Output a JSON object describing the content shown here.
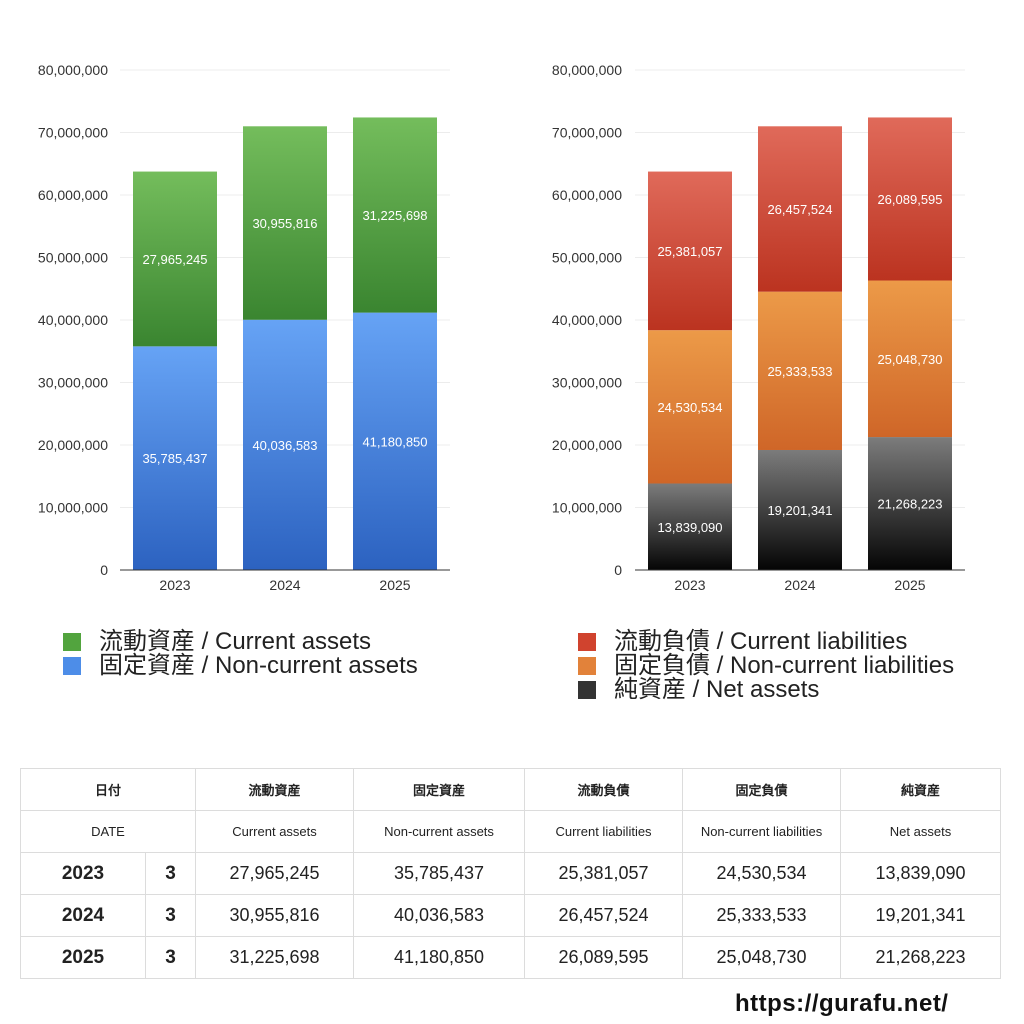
{
  "chart_data": [
    {
      "type": "bar",
      "stacked": true,
      "categories": [
        "2023",
        "2024",
        "2025"
      ],
      "ylim": [
        0,
        80000000
      ],
      "yticks": [
        "0",
        "10,000,000",
        "20,000,000",
        "30,000,000",
        "40,000,000",
        "50,000,000",
        "60,000,000",
        "70,000,000",
        "80,000,000"
      ],
      "grid": true,
      "legend_position": "bottom",
      "series": [
        {
          "name": "固定資産 / Non-current assets",
          "values": [
            35785437,
            40036583,
            41180850
          ],
          "labels": [
            "35,785,437",
            "40,036,583",
            "41,180,850"
          ],
          "color": "#4d8de8",
          "color_top": "#66a3f5",
          "color_bottom": "#2c62c0"
        },
        {
          "name": "流動資産 / Current assets",
          "values": [
            27965245,
            30955816,
            31225698
          ],
          "labels": [
            "27,965,245",
            "30,955,816",
            "31,225,698"
          ],
          "color": "#52a43e",
          "color_top": "#74bd5c",
          "color_bottom": "#3a8530"
        }
      ]
    },
    {
      "type": "bar",
      "stacked": true,
      "categories": [
        "2023",
        "2024",
        "2025"
      ],
      "ylim": [
        0,
        80000000
      ],
      "yticks": [
        "0",
        "10,000,000",
        "20,000,000",
        "30,000,000",
        "40,000,000",
        "50,000,000",
        "60,000,000",
        "70,000,000",
        "80,000,000"
      ],
      "grid": true,
      "legend_position": "bottom",
      "series": [
        {
          "name": "純資産 / Net assets",
          "values": [
            13839090,
            19201341,
            21268223
          ],
          "labels": [
            "13,839,090",
            "19,201,341",
            "21,268,223"
          ],
          "color": "#333333",
          "color_top": "#7c7c7c",
          "color_bottom": "#050505"
        },
        {
          "name": "固定負債 / Non-current liabilities",
          "values": [
            24530534,
            25333533,
            25048730
          ],
          "labels": [
            "24,530,534",
            "25,333,533",
            "25,048,730"
          ],
          "color": "#e2823a",
          "color_top": "#ec9a48",
          "color_bottom": "#cf6628"
        },
        {
          "name": "流動負債 / Current liabilities",
          "values": [
            25381057,
            26457524,
            26089595
          ],
          "labels": [
            "25,381,057",
            "26,457,524",
            "26,089,595"
          ],
          "color": "#d0432e",
          "color_top": "#e06a5a",
          "color_bottom": "#bb3320"
        }
      ]
    }
  ],
  "legend_left": [
    {
      "label": "流動資産 / Current assets",
      "color": "#52a43e"
    },
    {
      "label": "固定資産 / Non-current assets",
      "color": "#4d8de8"
    }
  ],
  "legend_right": [
    {
      "label": "流動負債 / Current liabilities",
      "color": "#d0432e"
    },
    {
      "label": "固定負債 / Non-current liabilities",
      "color": "#e2823a"
    },
    {
      "label": "純資産 / Net assets",
      "color": "#333333"
    }
  ],
  "table": {
    "header_jp": [
      "日付",
      "流動資産",
      "固定資産",
      "流動負債",
      "固定負債",
      "純資産"
    ],
    "header_en": [
      "DATE",
      "Current assets",
      "Non-current assets",
      "Current liabilities",
      "Non-current liabilities",
      "Net assets"
    ],
    "rows": [
      {
        "year": "2023",
        "month": "3",
        "values": [
          "27,965,245",
          "35,785,437",
          "25,381,057",
          "24,530,534",
          "13,839,090"
        ]
      },
      {
        "year": "2024",
        "month": "3",
        "values": [
          "30,955,816",
          "40,036,583",
          "26,457,524",
          "25,333,533",
          "19,201,341"
        ]
      },
      {
        "year": "2025",
        "month": "3",
        "values": [
          "31,225,698",
          "41,180,850",
          "26,089,595",
          "25,048,730",
          "21,268,223"
        ]
      }
    ]
  },
  "footer": {
    "url": "https://gurafu.net/"
  }
}
